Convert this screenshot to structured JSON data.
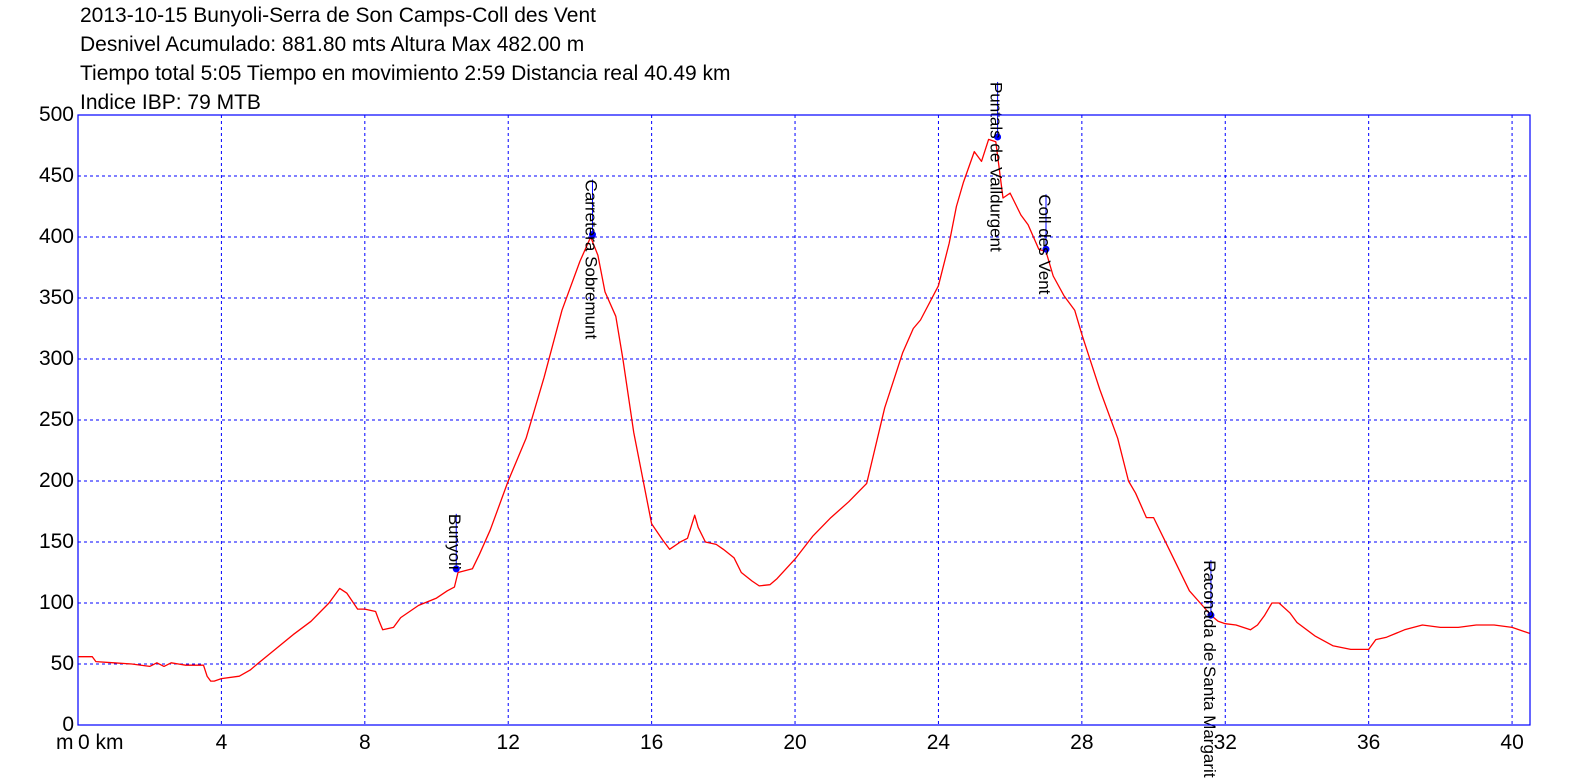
{
  "header": {
    "line1": "2013-10-15 Bunyoli-Serra de Son Camps-Coll des Vent",
    "line2": "Desnivel Acumulado: 881.80 mts  Altura Max 482.00 m",
    "line3": "Tiempo total 5:05 Tiempo en movimiento 2:59 Distancia real 40.49 km",
    "line4": "Indice IBP: 79 MTB"
  },
  "colors": {
    "profile": "#ff0000",
    "grid": "#0000ff",
    "frame": "#0000ff",
    "waypoint": "#0000ff"
  },
  "chart_data": {
    "type": "line",
    "xlabel": "km",
    "ylabel": "m",
    "xlim": [
      0,
      40.5
    ],
    "ylim": [
      0,
      500
    ],
    "grid": true,
    "x_ticks": [
      {
        "value": 0,
        "label": "0 km"
      },
      {
        "value": 4,
        "label": "4"
      },
      {
        "value": 8,
        "label": "8"
      },
      {
        "value": 12,
        "label": "12"
      },
      {
        "value": 16,
        "label": "16"
      },
      {
        "value": 20,
        "label": "20"
      },
      {
        "value": 24,
        "label": "24"
      },
      {
        "value": 28,
        "label": "28"
      },
      {
        "value": 32,
        "label": "32"
      },
      {
        "value": 36,
        "label": "36"
      },
      {
        "value": 40,
        "label": "40"
      }
    ],
    "y_ticks": [
      {
        "value": 0,
        "label": "0"
      },
      {
        "value": 50,
        "label": "50"
      },
      {
        "value": 100,
        "label": "100"
      },
      {
        "value": 150,
        "label": "150"
      },
      {
        "value": 200,
        "label": "200"
      },
      {
        "value": 250,
        "label": "250"
      },
      {
        "value": 300,
        "label": "300"
      },
      {
        "value": 350,
        "label": "350"
      },
      {
        "value": 400,
        "label": "400"
      },
      {
        "value": 450,
        "label": "450"
      },
      {
        "value": 500,
        "label": "500"
      }
    ],
    "y_unit_label": "m",
    "series": [
      {
        "x": [
          0,
          0.4,
          0.5,
          1.0,
          1.5,
          2.0,
          2.2,
          2.4,
          2.6,
          2.8,
          3.0,
          3.5,
          3.6,
          3.7,
          3.8,
          4.0,
          4.5,
          4.8,
          5.0,
          5.5,
          6.0,
          6.5,
          7.0,
          7.3,
          7.5,
          7.8,
          8.0,
          8.3,
          8.4,
          8.5,
          8.8,
          9.0,
          9.5,
          10.0,
          10.3,
          10.5,
          10.6,
          11.0,
          11.2,
          11.5,
          12.0,
          12.5,
          13.0,
          13.5,
          14.0,
          14.3,
          14.5,
          14.7,
          15.0,
          15.2,
          15.5,
          16.0,
          16.3,
          16.5,
          16.8,
          17.0,
          17.2,
          17.3,
          17.5,
          17.8,
          18.0,
          18.3,
          18.5,
          18.8,
          19.0,
          19.3,
          19.5,
          20.0,
          20.5,
          21.0,
          21.5,
          22.0,
          22.5,
          23.0,
          23.3,
          23.5,
          24.0,
          24.3,
          24.5,
          24.7,
          25.0,
          25.2,
          25.4,
          25.6,
          25.8,
          26.0,
          26.3,
          26.5,
          26.8,
          27.0,
          27.2,
          27.5,
          27.8,
          28.0,
          28.5,
          29.0,
          29.3,
          29.5,
          29.8,
          30.0,
          30.5,
          31.0,
          31.3,
          31.6,
          31.8,
          32.0,
          32.3,
          32.5,
          32.7,
          32.9,
          33.1,
          33.3,
          33.5,
          33.8,
          34.0,
          34.5,
          35.0,
          35.5,
          36.0,
          36.2,
          36.5,
          37.0,
          37.5,
          38.0,
          38.5,
          39.0,
          39.5,
          40.0,
          40.5
        ],
        "y": [
          56,
          56,
          52,
          51,
          50,
          48,
          51,
          48,
          51,
          50,
          49,
          49,
          40,
          36,
          36,
          38,
          40,
          45,
          50,
          62,
          74,
          85,
          100,
          112,
          108,
          95,
          95,
          93,
          85,
          78,
          80,
          88,
          98,
          104,
          110,
          113,
          125,
          128,
          140,
          160,
          200,
          235,
          285,
          340,
          380,
          400,
          385,
          355,
          335,
          300,
          240,
          165,
          152,
          144,
          150,
          153,
          172,
          162,
          150,
          148,
          144,
          137,
          125,
          118,
          114,
          115,
          120,
          136,
          155,
          170,
          183,
          198,
          260,
          305,
          325,
          332,
          360,
          395,
          425,
          445,
          470,
          462,
          480,
          478,
          432,
          436,
          418,
          410,
          390,
          388,
          368,
          352,
          340,
          320,
          275,
          235,
          200,
          190,
          170,
          170,
          140,
          110,
          100,
          90,
          85,
          83,
          82,
          80,
          78,
          82,
          90,
          100,
          100,
          92,
          84,
          73,
          65,
          62,
          62,
          70,
          72,
          78,
          82,
          80,
          80,
          82,
          82,
          80,
          75
        ]
      }
    ],
    "waypoints": [
      {
        "label": "Bunyoli",
        "x": 10.55,
        "y": 128
      },
      {
        "label": "Carretera Sobremunt",
        "x": 14.35,
        "y": 402
      },
      {
        "label": "Puntals de Valldurgent",
        "x": 25.65,
        "y": 482
      },
      {
        "label": "Coll des Vent",
        "x": 27.0,
        "y": 390
      },
      {
        "label": "Raconada de Santa Margarita",
        "x": 31.6,
        "y": 90
      }
    ]
  }
}
